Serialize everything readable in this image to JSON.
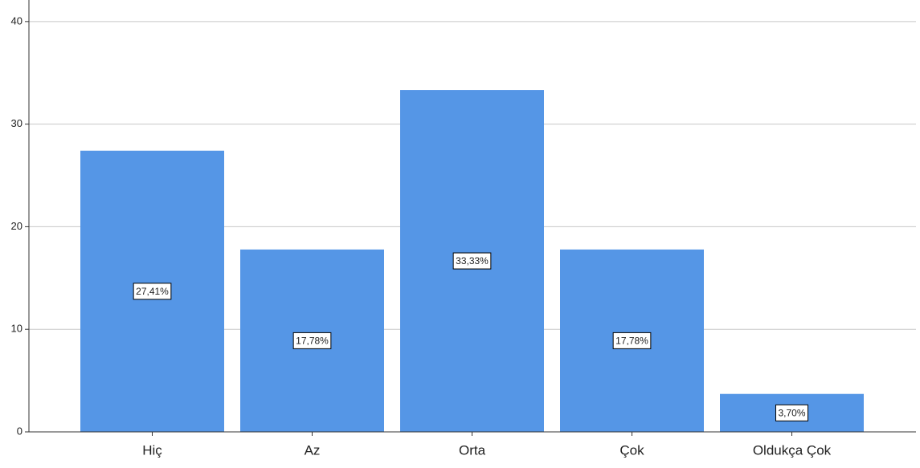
{
  "chart_data": {
    "type": "bar",
    "categories": [
      "Hiç",
      "Az",
      "Orta",
      "Çok",
      "Oldukça Çok"
    ],
    "values": [
      27.41,
      17.78,
      33.33,
      17.78,
      3.7
    ],
    "value_labels": [
      "27,41%",
      "17,78%",
      "33,33%",
      "17,78%",
      "3,70%"
    ],
    "color": "#5596e6",
    "ylim": [
      0,
      42.1
    ],
    "yticks": [
      0,
      10,
      20,
      30,
      40
    ],
    "grid": true
  }
}
